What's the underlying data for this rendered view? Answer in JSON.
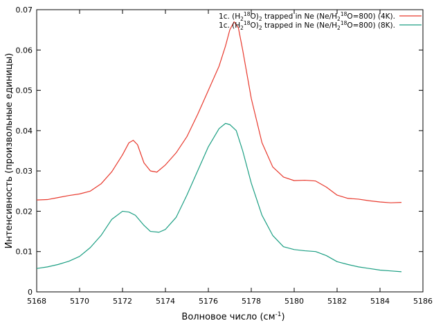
{
  "chart_data": {
    "type": "line",
    "xlabel": {
      "main": "Волновое число (см",
      "sup": "-1",
      "tail": ")"
    },
    "ylabel": "Интенсивность (произвольные единицы)",
    "xlim": [
      5168,
      5186
    ],
    "ylim": [
      0,
      0.07
    ],
    "xticks": [
      "5168",
      "5170",
      "5172",
      "5174",
      "5176",
      "5178",
      "5180",
      "5182",
      "5184",
      "5186"
    ],
    "yticks": [
      "0",
      "0.01",
      "0.02",
      "0.03",
      "0.04",
      "0.05",
      "0.06",
      "0.07"
    ],
    "grid": false,
    "legend_position": "top-right",
    "series": [
      {
        "legend": [
          {
            "t": "1c. (H"
          },
          {
            "t": "2",
            "s": "sub"
          },
          {
            "t": "18",
            "s": "sup"
          },
          {
            "t": "O)"
          },
          {
            "t": "2",
            "s": "sub"
          },
          {
            "t": " trapped in Ne (Ne/H"
          },
          {
            "t": "2",
            "s": "sub"
          },
          {
            "t": "18",
            "s": "sup"
          },
          {
            "t": "O=800) (4K)."
          }
        ],
        "color": "#e8382c",
        "points": [
          [
            5168.0,
            0.0228
          ],
          [
            5168.5,
            0.0229
          ],
          [
            5169.0,
            0.0234
          ],
          [
            5169.5,
            0.0239
          ],
          [
            5170.0,
            0.0243
          ],
          [
            5170.5,
            0.025
          ],
          [
            5171.0,
            0.0268
          ],
          [
            5171.5,
            0.0298
          ],
          [
            5172.0,
            0.034
          ],
          [
            5172.3,
            0.037
          ],
          [
            5172.5,
            0.0376
          ],
          [
            5172.7,
            0.0365
          ],
          [
            5173.0,
            0.032
          ],
          [
            5173.3,
            0.03
          ],
          [
            5173.6,
            0.0297
          ],
          [
            5174.0,
            0.0315
          ],
          [
            5174.5,
            0.0345
          ],
          [
            5175.0,
            0.0385
          ],
          [
            5175.5,
            0.044
          ],
          [
            5176.0,
            0.05
          ],
          [
            5176.5,
            0.056
          ],
          [
            5176.8,
            0.061
          ],
          [
            5177.0,
            0.065
          ],
          [
            5177.2,
            0.067
          ],
          [
            5177.4,
            0.0655
          ],
          [
            5177.6,
            0.06
          ],
          [
            5178.0,
            0.048
          ],
          [
            5178.5,
            0.037
          ],
          [
            5179.0,
            0.031
          ],
          [
            5179.5,
            0.0285
          ],
          [
            5180.0,
            0.0276
          ],
          [
            5180.5,
            0.0277
          ],
          [
            5181.0,
            0.0275
          ],
          [
            5181.5,
            0.026
          ],
          [
            5182.0,
            0.024
          ],
          [
            5182.5,
            0.0232
          ],
          [
            5183.0,
            0.023
          ],
          [
            5183.5,
            0.0226
          ],
          [
            5184.0,
            0.0223
          ],
          [
            5184.5,
            0.0221
          ],
          [
            5185.0,
            0.0222
          ]
        ]
      },
      {
        "legend": [
          {
            "t": "1c. (H"
          },
          {
            "t": "2",
            "s": "sub"
          },
          {
            "t": "18",
            "s": "sup"
          },
          {
            "t": "O)"
          },
          {
            "t": "2",
            "s": "sub"
          },
          {
            "t": " trapped in Ne (Ne/H"
          },
          {
            "t": "2",
            "s": "sub"
          },
          {
            "t": "18",
            "s": "sup"
          },
          {
            "t": "O=800) (8K)."
          }
        ],
        "color": "#1a9e82",
        "points": [
          [
            5168.0,
            0.0058
          ],
          [
            5168.5,
            0.0062
          ],
          [
            5169.0,
            0.0068
          ],
          [
            5169.5,
            0.0076
          ],
          [
            5170.0,
            0.0088
          ],
          [
            5170.5,
            0.011
          ],
          [
            5171.0,
            0.014
          ],
          [
            5171.5,
            0.018
          ],
          [
            5172.0,
            0.02
          ],
          [
            5172.3,
            0.0198
          ],
          [
            5172.6,
            0.019
          ],
          [
            5173.0,
            0.0165
          ],
          [
            5173.3,
            0.015
          ],
          [
            5173.7,
            0.0148
          ],
          [
            5174.0,
            0.0155
          ],
          [
            5174.5,
            0.0185
          ],
          [
            5175.0,
            0.024
          ],
          [
            5175.5,
            0.03
          ],
          [
            5176.0,
            0.036
          ],
          [
            5176.5,
            0.0405
          ],
          [
            5176.8,
            0.0418
          ],
          [
            5177.0,
            0.0415
          ],
          [
            5177.3,
            0.04
          ],
          [
            5177.6,
            0.035
          ],
          [
            5178.0,
            0.027
          ],
          [
            5178.5,
            0.019
          ],
          [
            5179.0,
            0.014
          ],
          [
            5179.5,
            0.0112
          ],
          [
            5180.0,
            0.0105
          ],
          [
            5180.5,
            0.0102
          ],
          [
            5181.0,
            0.01
          ],
          [
            5181.5,
            0.009
          ],
          [
            5182.0,
            0.0075
          ],
          [
            5182.5,
            0.0068
          ],
          [
            5183.0,
            0.0062
          ],
          [
            5183.5,
            0.0058
          ],
          [
            5184.0,
            0.0054
          ],
          [
            5184.5,
            0.0052
          ],
          [
            5185.0,
            0.005
          ]
        ]
      }
    ]
  }
}
